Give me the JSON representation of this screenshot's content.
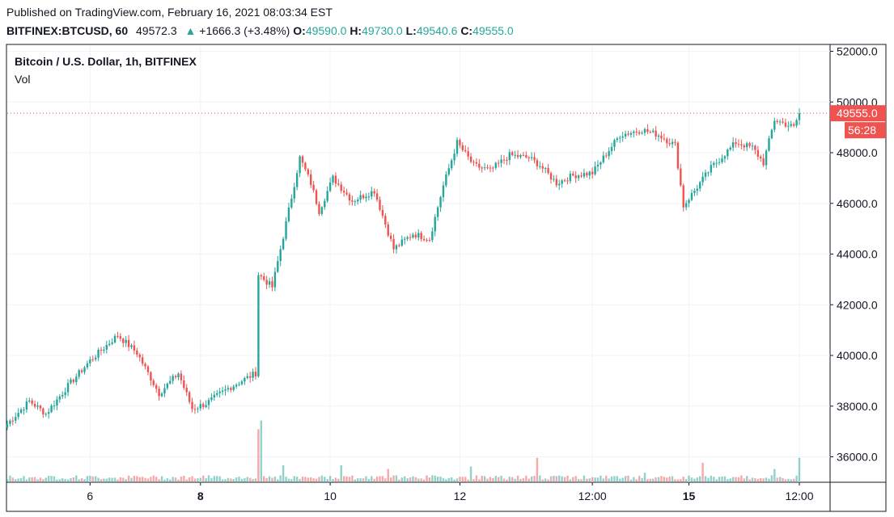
{
  "header": {
    "published": "Published on TradingView.com, February 16, 2021 08:03:34 EST",
    "symbol": "BITFINEX:BTCUSD, 60",
    "last": "49572.3",
    "arrow": "▲",
    "change": "+1666.3 (+3.48%)",
    "o_label": "O:",
    "o_value": "49590.0",
    "h_label": "H:",
    "h_value": "49730.0",
    "l_label": "L:",
    "l_value": "49540.6",
    "c_label": "C:",
    "c_value": "49555.0"
  },
  "legend": {
    "title": "Bitcoin / U.S. Dollar, 1h, BITFINEX",
    "volume_label": "Vol"
  },
  "price_tag": {
    "price": "49555.0",
    "countdown": "56:28"
  },
  "colors": {
    "up": "#26a69a",
    "down": "#ef5350",
    "grid": "#f0f3fa",
    "axis": "#131722"
  },
  "chart_data": {
    "type": "candlestick",
    "title": "Bitcoin / U.S. Dollar, 1h, BITFINEX",
    "y_axis": {
      "ylim": [
        35000,
        52300
      ],
      "ticks": [
        "52000.0",
        "50000.0",
        "48000.0",
        "46000.0",
        "44000.0",
        "42000.0",
        "40000.0",
        "38000.0",
        "36000.0"
      ],
      "tick_values": [
        52000,
        50000,
        48000,
        46000,
        44000,
        42000,
        40000,
        38000,
        36000
      ],
      "position": "right"
    },
    "x_axis": {
      "ticks": [
        {
          "label": "6",
          "bar": 30,
          "bold": false
        },
        {
          "label": "8",
          "bar": 70,
          "bold": true
        },
        {
          "label": "10",
          "bar": 117,
          "bold": false
        },
        {
          "label": "12",
          "bar": 164,
          "bold": false
        },
        {
          "label": "12:00",
          "bar": 212,
          "bold": false
        },
        {
          "label": "15",
          "bar": 247,
          "bold": true
        },
        {
          "label": "12:00",
          "bar": 287,
          "bold": false
        }
      ]
    },
    "last_price": 49555,
    "path_points": [
      [
        0,
        37300
      ],
      [
        8,
        38200
      ],
      [
        14,
        37700
      ],
      [
        22,
        38800
      ],
      [
        30,
        39800
      ],
      [
        40,
        40800
      ],
      [
        47,
        40100
      ],
      [
        55,
        38500
      ],
      [
        62,
        39300
      ],
      [
        67,
        37900
      ],
      [
        72,
        38100
      ],
      [
        80,
        38700
      ],
      [
        90,
        39300
      ],
      [
        91,
        43200
      ],
      [
        96,
        42700
      ],
      [
        100,
        44700
      ],
      [
        106,
        47800
      ],
      [
        110,
        46800
      ],
      [
        113,
        45700
      ],
      [
        118,
        47000
      ],
      [
        125,
        46100
      ],
      [
        133,
        46500
      ],
      [
        140,
        44200
      ],
      [
        147,
        44800
      ],
      [
        153,
        44600
      ],
      [
        158,
        46700
      ],
      [
        163,
        48400
      ],
      [
        169,
        47500
      ],
      [
        175,
        47300
      ],
      [
        182,
        47900
      ],
      [
        189,
        47800
      ],
      [
        193,
        47500
      ],
      [
        199,
        46800
      ],
      [
        205,
        47100
      ],
      [
        212,
        47200
      ],
      [
        222,
        48700
      ],
      [
        230,
        48900
      ],
      [
        236,
        48700
      ],
      [
        242,
        48300
      ],
      [
        245,
        45900
      ],
      [
        249,
        46500
      ],
      [
        255,
        47400
      ],
      [
        264,
        48400
      ],
      [
        270,
        48200
      ],
      [
        274,
        47600
      ],
      [
        278,
        49300
      ],
      [
        285,
        49000
      ],
      [
        287,
        49555
      ]
    ],
    "volume_spikes": [
      {
        "bar": 91,
        "volume": 4200,
        "dir": "down"
      },
      {
        "bar": 92,
        "volume": 4900,
        "dir": "up"
      },
      {
        "bar": 100,
        "volume": 1300,
        "dir": "up"
      },
      {
        "bar": 121,
        "volume": 1300,
        "dir": "up"
      },
      {
        "bar": 138,
        "volume": 1000,
        "dir": "down"
      },
      {
        "bar": 168,
        "volume": 1200,
        "dir": "up"
      },
      {
        "bar": 192,
        "volume": 1900,
        "dir": "down"
      },
      {
        "bar": 231,
        "volume": 700,
        "dir": "up"
      },
      {
        "bar": 252,
        "volume": 1500,
        "dir": "down"
      },
      {
        "bar": 278,
        "volume": 1000,
        "dir": "up"
      },
      {
        "bar": 287,
        "volume": 1900,
        "dir": "up"
      }
    ]
  }
}
